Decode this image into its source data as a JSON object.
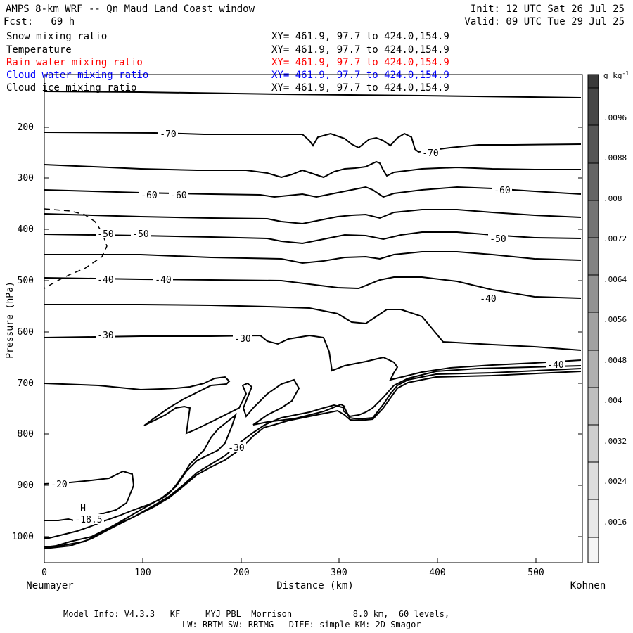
{
  "header": {
    "title": "AMPS 8-km WRF -- Qn Maud Land Coast window",
    "init": "Init: 12 UTC Sat 26 Jul 25",
    "fcst": "Fcst:   69 h",
    "valid": "Valid: 09 UTC Tue 29 Jul 25"
  },
  "fields": [
    {
      "name": "Snow mixing ratio",
      "xy": "XY= 461.9, 97.7 to 424.0,154.9",
      "color": "#000000"
    },
    {
      "name": "Temperature",
      "xy": "XY= 461.9, 97.7 to 424.0,154.9",
      "color": "#000000"
    },
    {
      "name": "Rain water mixing ratio",
      "xy": "XY= 461.9, 97.7 to 424.0,154.9",
      "color": "#ff0000"
    },
    {
      "name": "Cloud water mixing ratio",
      "xy": "XY= 461.9, 97.7 to 424.0,154.9",
      "color": "#0000ff"
    },
    {
      "name": "Cloud ice mixing ratio",
      "xy": "XY= 461.9, 97.7 to 424.0,154.9",
      "color": "#000000"
    }
  ],
  "footer": {
    "line1": "Model Info: V4.3.3   KF     MYJ PBL  Morrison            8.0 km,  60 levels,",
    "line2": "LW: RRTM SW: RRTMG   DIFF: simple KM: 2D Smagor"
  },
  "chart_data": {
    "type": "contour",
    "xlabel": "Distance (km)",
    "ylabel": "Pressure (hPa)",
    "x_ticks": [
      "0",
      "100",
      "200",
      "300",
      "400",
      "500"
    ],
    "y_ticks": [
      "200",
      "300",
      "400",
      "500",
      "600",
      "700",
      "800",
      "900",
      "1000"
    ],
    "xlim": [
      0,
      545
    ],
    "ylim": [
      1050,
      100
    ],
    "left_endpoint": "Neumayer",
    "right_endpoint": "Kohnen",
    "colorbar": {
      "unit": "g kg",
      "unit_exp": "-1",
      "labels": [
        ".0096",
        ".0088",
        ".008",
        ".0072",
        ".0064",
        ".0056",
        ".0048",
        ".004",
        ".0032",
        ".0024",
        ".0016"
      ]
    },
    "contour_labels": [
      "-70",
      "-70",
      "-60",
      "-60",
      "-60",
      "-50",
      "-50",
      "-50",
      "-40",
      "-40",
      "-40",
      "-40",
      "-30",
      "-30",
      "-30",
      "-20",
      "-18.5"
    ],
    "marker": "H"
  }
}
